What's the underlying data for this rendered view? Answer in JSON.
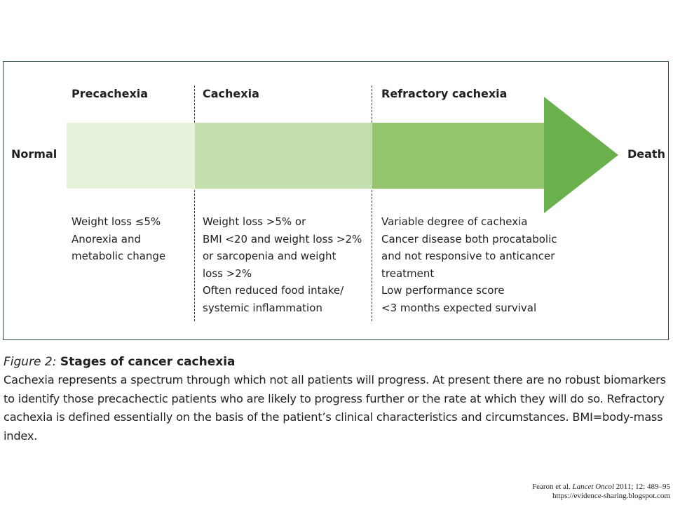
{
  "diagram": {
    "endpoints": {
      "start": "Normal",
      "end": "Death"
    },
    "stages": [
      {
        "title": "Precachexia",
        "color": "#e6f2d9",
        "criteria": [
          "Weight loss ≤5%",
          "Anorexia and",
          "metabolic change"
        ]
      },
      {
        "title": "Cachexia",
        "color": "#c3dfad",
        "criteria": [
          "Weight loss >5% or",
          "BMI <20 and weight loss >2%",
          "or sarcopenia and weight",
          "loss >2%",
          "Often reduced food intake/",
          "systemic inflammation"
        ]
      },
      {
        "title": "Refractory cachexia",
        "color": "#95c46e",
        "criteria": [
          "Variable degree of cachexia",
          "Cancer disease both procatabolic",
          "and not responsive to anticancer",
          "treatment",
          "Low performance score",
          "<3 months expected survival"
        ]
      }
    ],
    "arrowhead_color": "#6ab04c"
  },
  "caption": {
    "figure_label": "Figure 2:",
    "title": "Stages of cancer cachexia",
    "body": "Cachexia represents a spectrum through which not all patients will progress. At present there are no robust biomarkers to identify those precachectic patients who are likely to progress further or the rate at which they will do so. Refractory cachexia is defined essentially on the basis of the patient’s clinical characteristics and circumstances. BMI=body-mass index."
  },
  "citation": {
    "authors": "Fearon et al.",
    "journal": "Lancet Oncol",
    "details": "2011; 12: 489–95",
    "url": "https://evidence-sharing.blogspot.com"
  }
}
